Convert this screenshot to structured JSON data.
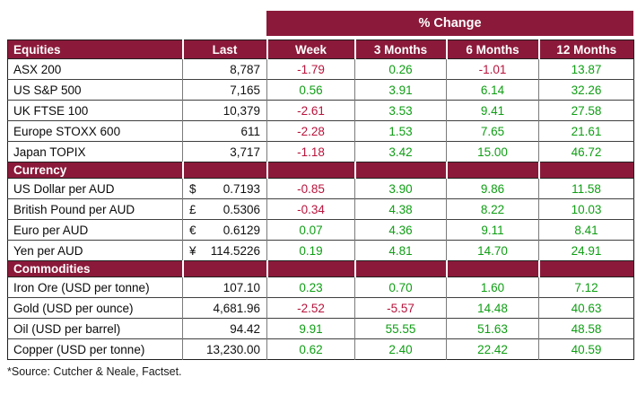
{
  "colors": {
    "brand": "#8b1a3a",
    "positive": "#0f9e14",
    "negative": "#b8143c"
  },
  "table": {
    "change_banner": "% Change",
    "last_header": "Last",
    "change_headers": [
      "Week",
      "3 Months",
      "6 Months",
      "12 Months"
    ],
    "sections": [
      {
        "label": "Equities",
        "rows": [
          {
            "label": "ASX 200",
            "last": "8,787",
            "changes": [
              "-1.79",
              "0.26",
              "-1.01",
              "13.87"
            ]
          },
          {
            "label": "US S&P 500",
            "last": "7,165",
            "changes": [
              "0.56",
              "3.91",
              "6.14",
              "32.26"
            ]
          },
          {
            "label": "UK FTSE 100",
            "last": "10,379",
            "changes": [
              "-2.61",
              "3.53",
              "9.41",
              "27.58"
            ]
          },
          {
            "label": "Europe STOXX 600",
            "last": "611",
            "changes": [
              "-2.28",
              "1.53",
              "7.65",
              "21.61"
            ]
          },
          {
            "label": "Japan TOPIX",
            "last": "3,717",
            "changes": [
              "-1.18",
              "3.42",
              "15.00",
              "46.72"
            ]
          }
        ]
      },
      {
        "label": "Currency",
        "rows": [
          {
            "label": "US Dollar per AUD",
            "symbol": "$",
            "last": "0.7193",
            "changes": [
              "-0.85",
              "3.90",
              "9.86",
              "11.58"
            ]
          },
          {
            "label": "British Pound per AUD",
            "symbol": "£",
            "last": "0.5306",
            "changes": [
              "-0.34",
              "4.38",
              "8.22",
              "10.03"
            ]
          },
          {
            "label": "Euro per AUD",
            "symbol": "€",
            "last": "0.6129",
            "changes": [
              "0.07",
              "4.36",
              "9.11",
              "8.41"
            ]
          },
          {
            "label": "Yen per AUD",
            "symbol": "¥",
            "last": "114.5226",
            "changes": [
              "0.19",
              "4.81",
              "14.70",
              "24.91"
            ]
          }
        ]
      },
      {
        "label": "Commodities",
        "rows": [
          {
            "label": "Iron Ore (USD per tonne)",
            "last": "107.10",
            "changes": [
              "0.23",
              "0.70",
              "1.60",
              "7.12"
            ]
          },
          {
            "label": "Gold (USD per ounce)",
            "last": "4,681.96",
            "changes": [
              "-2.52",
              "-5.57",
              "14.48",
              "40.63"
            ]
          },
          {
            "label": "Oil (USD per barrel)",
            "last": "94.42",
            "changes": [
              "9.91",
              "55.55",
              "51.63",
              "48.58"
            ]
          },
          {
            "label": "Copper (USD per tonne)",
            "last": "13,230.00",
            "changes": [
              "0.62",
              "2.40",
              "22.42",
              "40.59"
            ]
          }
        ]
      }
    ]
  },
  "footer": {
    "source": "*Source: Cutcher & Neale, Factset."
  }
}
